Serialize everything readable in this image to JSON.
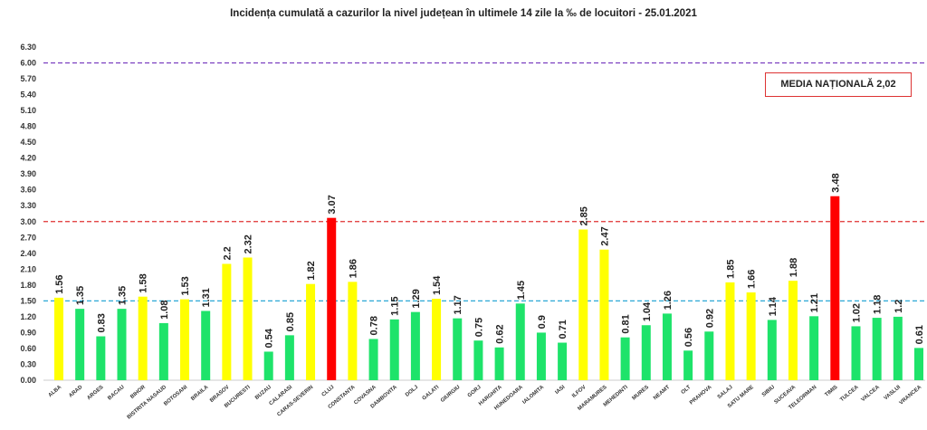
{
  "chart_data": {
    "type": "bar",
    "title": "Incidența cumulată a cazurilor la nivel județean în ultimele 14 zile la ‰ de locuitori - 25.01.2021",
    "xlabel": "",
    "ylabel": "",
    "ylim": [
      0,
      6.3
    ],
    "yticks": [
      "0.00",
      "0.30",
      "0.60",
      "0.90",
      "1.20",
      "1.50",
      "1.80",
      "2.10",
      "2.40",
      "2.70",
      "3.00",
      "3.30",
      "3.60",
      "3.90",
      "4.20",
      "4.50",
      "4.80",
      "5.10",
      "5.40",
      "5.70",
      "6.00",
      "6.30"
    ],
    "grid": false,
    "categories": [
      "ALBA",
      "ARAD",
      "ARGES",
      "BACAU",
      "BIHOR",
      "BISTRITA NASAUD",
      "BOTOSANI",
      "BRAILA",
      "BRASOV",
      "BUCURESTI",
      "BUZAU",
      "CALARASI",
      "CARAS-SEVERIN",
      "CLUJ",
      "CONSTANTA",
      "COVASNA",
      "DAMBOVITA",
      "DOLJ",
      "GALATI",
      "GIURGIU",
      "GORJ",
      "HARGHITA",
      "HUNEDOARA",
      "IALOMITA",
      "IASI",
      "ILFOV",
      "MARAMURES",
      "MEHEDINTI",
      "MURES",
      "NEAMT",
      "OLT",
      "PRAHOVA",
      "SALAJ",
      "SATU MARE",
      "SIBIU",
      "SUCEAVA",
      "TELEORMAN",
      "TIMIS",
      "TULCEA",
      "VALCEA",
      "VASLUI",
      "VRANCEA"
    ],
    "values": [
      1.56,
      1.35,
      0.83,
      1.35,
      1.58,
      1.08,
      1.53,
      1.31,
      2.2,
      2.32,
      0.54,
      0.85,
      1.82,
      3.07,
      1.86,
      0.78,
      1.15,
      1.29,
      1.54,
      1.17,
      0.75,
      0.62,
      1.45,
      0.9,
      0.71,
      2.85,
      2.47,
      0.81,
      1.04,
      1.26,
      0.56,
      0.92,
      1.85,
      1.66,
      1.14,
      1.88,
      1.21,
      3.48,
      1.02,
      1.18,
      1.2,
      0.61
    ],
    "labels": [
      "1.56",
      "1.35",
      "0.83",
      "1.35",
      "1.58",
      "1.08",
      "1.53",
      "1.31",
      "2.2",
      "2.32",
      "0.54",
      "0.85",
      "1.82",
      "3.07",
      "1.86",
      "0.78",
      "1.15",
      "1.29",
      "1.54",
      "1.17",
      "0.75",
      "0.62",
      "1.45",
      "0.9",
      "0.71",
      "2.85",
      "2.47",
      "0.81",
      "1.04",
      "1.26",
      "0.56",
      "0.92",
      "1.85",
      "1.66",
      "1.14",
      "1.88",
      "1.21",
      "3.48",
      "1.02",
      "1.18",
      "1.2",
      "0.61"
    ],
    "reference_lines": [
      {
        "value": 6.0,
        "color": "#7a3fc0",
        "style": "dashed"
      },
      {
        "value": 3.0,
        "color": "#e03030",
        "style": "dashed"
      },
      {
        "value": 1.5,
        "color": "#2aa7d6",
        "style": "dashed"
      }
    ],
    "color_rules": {
      "low": "#1ee36a",
      "medium": "#ffff00",
      "high": "#ff0000"
    },
    "annotation": "MEDIA NAȚIONALĂ 2,02"
  }
}
